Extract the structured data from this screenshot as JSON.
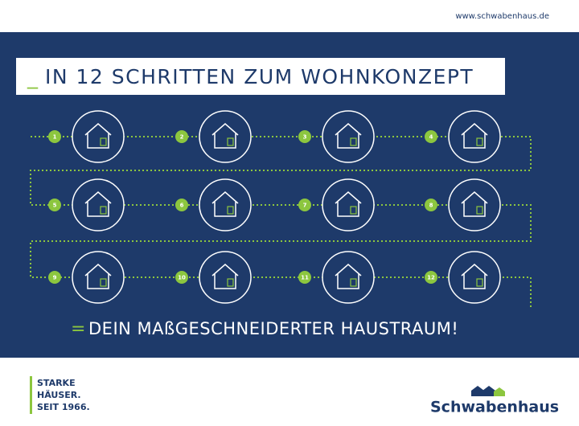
{
  "header": {
    "url": "www.schwabenhaus.de"
  },
  "title": {
    "prefix": "_",
    "text": "IN 12 SCHRITTEN ZUM WOHNKONZEPT"
  },
  "steps": [
    "1",
    "2",
    "3",
    "4",
    "5",
    "6",
    "7",
    "8",
    "9",
    "10",
    "11",
    "12"
  ],
  "result": {
    "prefix": "=",
    "text": "DEIN MAßGESCHNEIDERTER HAUSTRAUM!"
  },
  "footer": {
    "slogan": [
      "STARKE",
      "HÄUSER.",
      "SEIT 1966."
    ],
    "logo": "Schwabenhaus"
  }
}
